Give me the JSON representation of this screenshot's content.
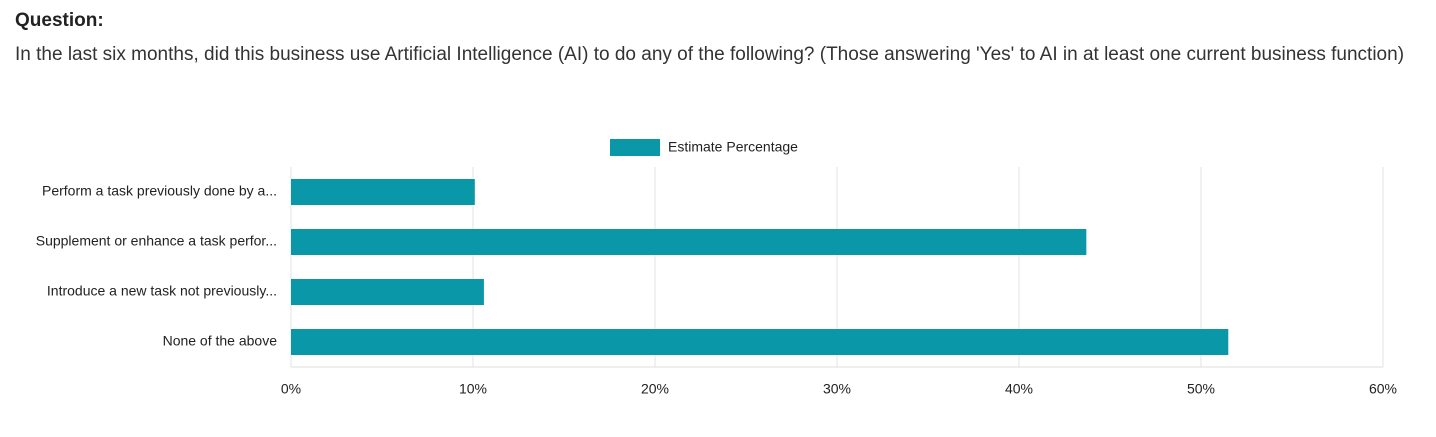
{
  "chart_data": {
    "type": "bar",
    "orientation": "horizontal",
    "title": "Question:",
    "subtitle": "In the last six months, did this business use Artificial Intelligence (AI) to do any of the following? (Those answering 'Yes' to AI in at least one current business function)",
    "categories": [
      "Perform a task previously done by a...",
      "Supplement or enhance a task perfor...",
      "Introduce a new task not previously...",
      "None of the above"
    ],
    "series": [
      {
        "name": "Estimate Percentage",
        "color": "#0a97a7",
        "values": [
          10.1,
          43.7,
          10.6,
          51.5
        ]
      }
    ],
    "xlim": [
      0,
      60
    ],
    "xticks": [
      {
        "value": 0,
        "label": "0%"
      },
      {
        "value": 10,
        "label": "10%"
      },
      {
        "value": 20,
        "label": "20%"
      },
      {
        "value": 30,
        "label": "30%"
      },
      {
        "value": 40,
        "label": "40%"
      },
      {
        "value": 50,
        "label": "50%"
      },
      {
        "value": 60,
        "label": "60%"
      }
    ],
    "grid": true,
    "legend": "top"
  }
}
